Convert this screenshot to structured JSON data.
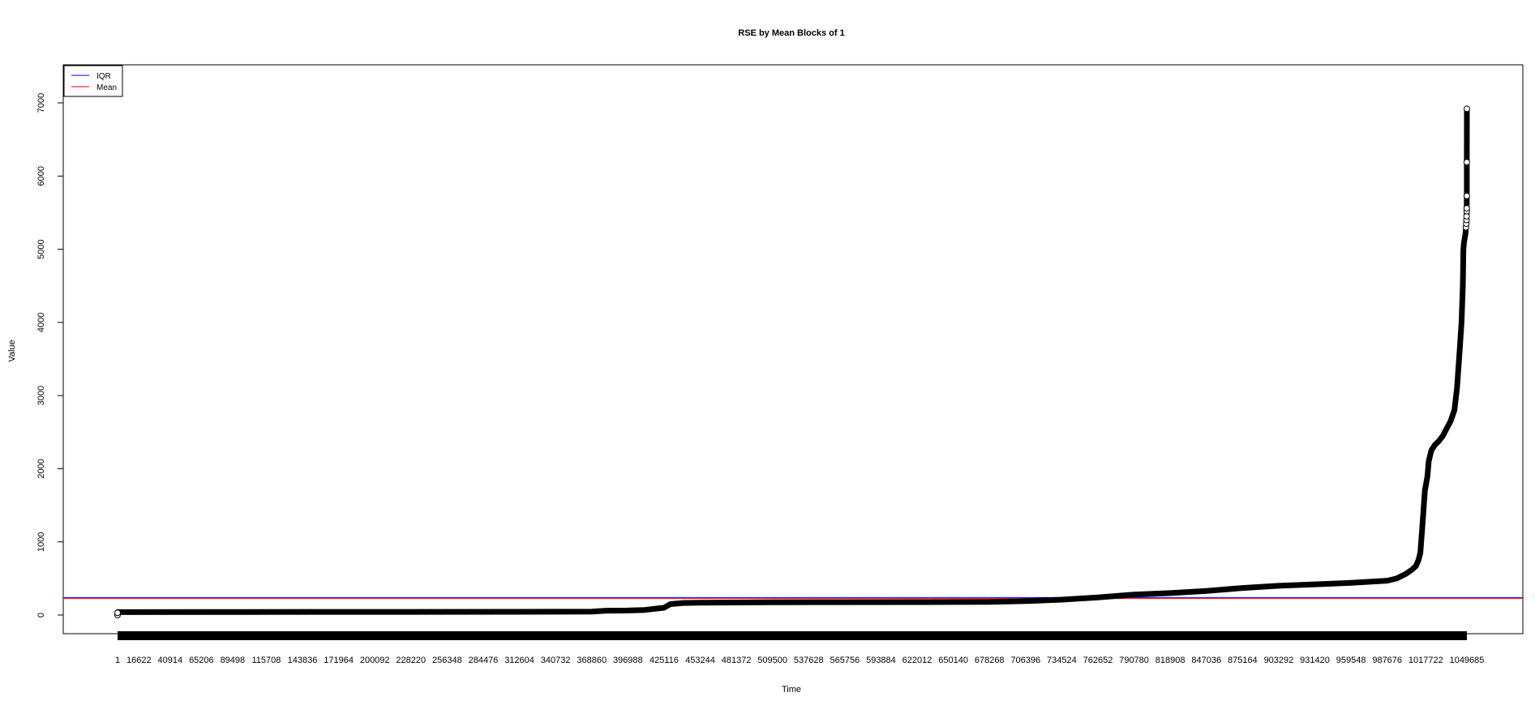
{
  "chart_data": {
    "type": "scatter",
    "title": "RSE by Mean Blocks of 1",
    "xlabel": "Time",
    "ylabel": "Value",
    "xlim": [
      1,
      1049685
    ],
    "ylim": [
      -280,
      7480
    ],
    "yticks": [
      0,
      1000,
      2000,
      3000,
      4000,
      5000,
      6000,
      7000
    ],
    "ytick_labels": [
      "0",
      "1000",
      "2000",
      "3000",
      "4000",
      "5000",
      "6000",
      "7000"
    ],
    "xticks": [
      1,
      16622,
      40914,
      65206,
      89498,
      115708,
      143836,
      171964,
      200092,
      228220,
      256348,
      284476,
      312604,
      340732,
      368860,
      396988,
      425116,
      453244,
      481372,
      509500,
      537628,
      565756,
      593884,
      622012,
      650140,
      678268,
      706396,
      734524,
      762652,
      790780,
      818908,
      847036,
      875164,
      903292,
      931420,
      959548,
      987676,
      1017722,
      1049685
    ],
    "xtick_labels": [
      "1",
      "16622",
      "40914",
      "65206",
      "89498",
      "115708",
      "143836",
      "171964",
      "200092",
      "228220",
      "256348",
      "284476",
      "312604",
      "340732",
      "368860",
      "396988",
      "425116",
      "453244",
      "481372",
      "509500",
      "537628",
      "565756",
      "593884",
      "622012",
      "650140",
      "678268",
      "706396",
      "734524",
      "762652",
      "790780",
      "818908",
      "847036",
      "875164",
      "903292",
      "931420",
      "959548",
      "987676",
      "1017722",
      "1049685"
    ],
    "series": [
      {
        "name": "RSE",
        "color": "#000000",
        "marker": "open-circle",
        "x": [
          1,
          1,
          1,
          100000,
          200000,
          300000,
          368860,
          380000,
          396988,
          410000,
          420000,
          425116,
          430000,
          440000,
          453244,
          481372,
          509500,
          565756,
          622012,
          650140,
          678268,
          706396,
          734524,
          762652,
          790780,
          818908,
          847036,
          875164,
          903292,
          931420,
          959548,
          987676,
          995000,
          1002000,
          1007000,
          1010000,
          1012000,
          1013500,
          1015000,
          1017000,
          1019000,
          1020000,
          1022000,
          1025000,
          1028000,
          1031000,
          1034000,
          1037000,
          1040000,
          1042000,
          1044000,
          1045500,
          1046500,
          1047000,
          1047500,
          1048000,
          1048500,
          1048800,
          1049000,
          1049200,
          1049350,
          1049450,
          1049530,
          1049580,
          1049620,
          1049650,
          1049685
        ],
        "y": [
          0,
          30,
          40,
          42,
          43,
          44,
          46,
          60,
          62,
          70,
          90,
          100,
          150,
          165,
          170,
          172,
          175,
          176,
          177,
          178,
          180,
          190,
          210,
          240,
          280,
          300,
          330,
          370,
          400,
          420,
          440,
          470,
          500,
          560,
          620,
          670,
          750,
          850,
          1200,
          1700,
          1900,
          2100,
          2250,
          2330,
          2380,
          2450,
          2550,
          2650,
          2800,
          3100,
          3600,
          4000,
          4500,
          5000,
          5100,
          5150,
          5200,
          5250,
          5300,
          5350,
          5400,
          5450,
          5520,
          5560,
          5730,
          6190,
          6920
        ]
      }
    ],
    "reference_lines": [
      {
        "name": "IQR",
        "color": "#0000ff",
        "y": 240
      },
      {
        "name": "Mean",
        "color": "#ff0000",
        "y": 225
      }
    ],
    "rug_color": "#000000",
    "legend": {
      "position": "top-left",
      "entries": [
        {
          "label": "IQR",
          "color": "#0000ff"
        },
        {
          "label": "Mean",
          "color": "#ff0000"
        }
      ]
    },
    "grid": false
  }
}
